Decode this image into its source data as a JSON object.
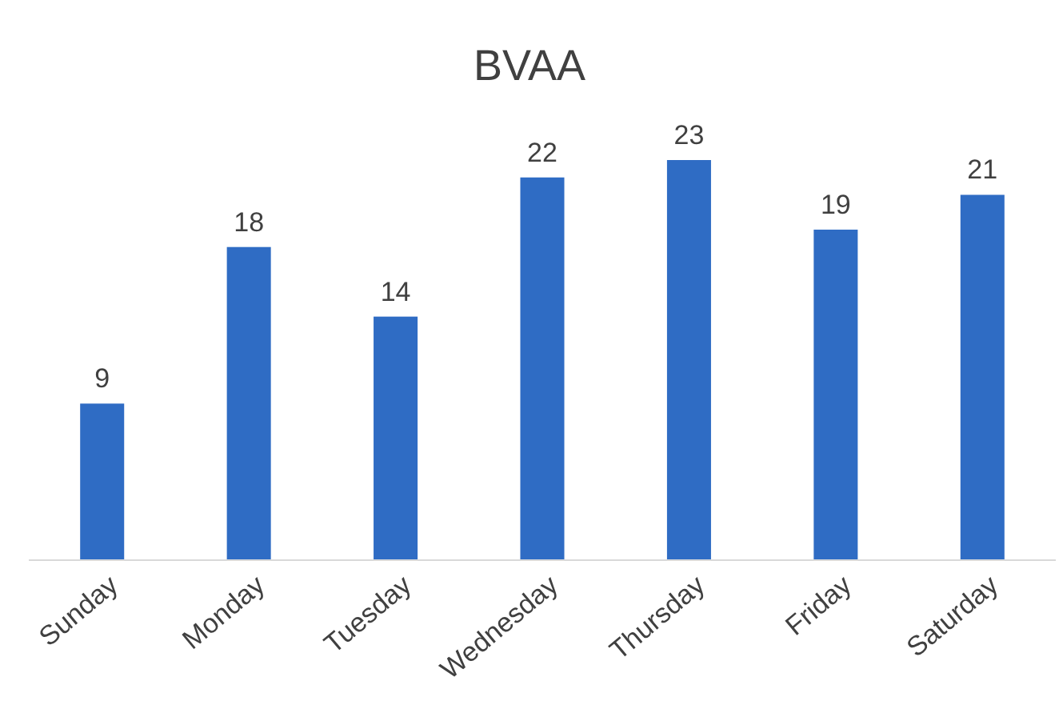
{
  "chart_data": {
    "type": "bar",
    "title": "BVAA",
    "categories": [
      "Sunday",
      "Monday",
      "Tuesday",
      "Wednesday",
      "Thursday",
      "Friday",
      "Saturday"
    ],
    "values": [
      9,
      18,
      14,
      22,
      23,
      19,
      21
    ],
    "color": "#2f6cc4",
    "data_labels": true
  }
}
